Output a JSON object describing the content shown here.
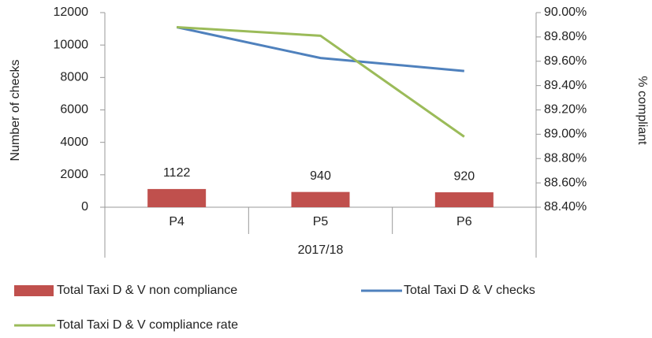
{
  "chart_data": {
    "type": "combo",
    "categories": [
      "P4",
      "P5",
      "P6"
    ],
    "category_group": "2017/18",
    "y_label": "Number of checks",
    "y2_label": "% compliant",
    "ylim": [
      0,
      12000
    ],
    "yticks": [
      0,
      2000,
      4000,
      6000,
      8000,
      10000,
      12000
    ],
    "y2lim": [
      88.4,
      90
    ],
    "y2ticks": [
      {
        "value": 88.4,
        "label": "88.40%"
      },
      {
        "value": 88.6,
        "label": "88.60%"
      },
      {
        "value": 88.8,
        "label": "88.80%"
      },
      {
        "value": 89.0,
        "label": "89.00%"
      },
      {
        "value": 89.2,
        "label": "89.20%"
      },
      {
        "value": 89.4,
        "label": "89.40%"
      },
      {
        "value": 89.6,
        "label": "89.60%"
      },
      {
        "value": 89.8,
        "label": "89.80%"
      },
      {
        "value": 90.0,
        "label": "90.00%"
      }
    ],
    "series": [
      {
        "name": "Total Taxi D & V non compliance",
        "type": "bar",
        "color": "#c0504d",
        "values": [
          1122,
          940,
          920
        ]
      },
      {
        "name": "Total Taxi D & V checks",
        "type": "line",
        "color": "#4f81bd",
        "values": [
          11100,
          9200,
          8400
        ]
      },
      {
        "name": "Total Taxi D & V compliance rate",
        "type": "line",
        "axis": "y2",
        "color": "#9bbb59",
        "values": [
          89.88,
          89.81,
          88.98
        ]
      }
    ]
  }
}
